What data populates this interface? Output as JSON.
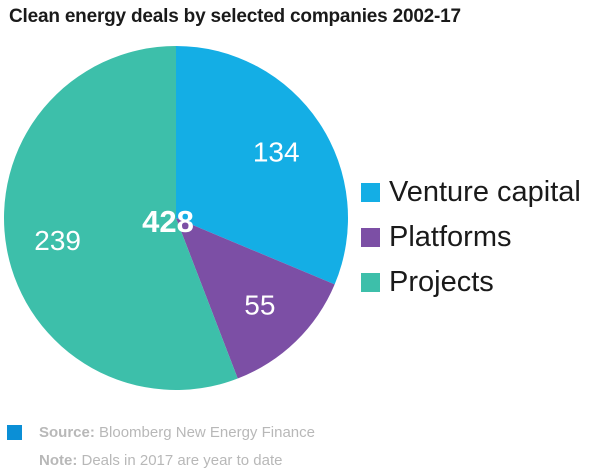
{
  "title": "Clean energy deals by selected companies 2002-17",
  "chart_data": {
    "type": "pie",
    "title": "Clean energy deals by selected companies 2002-17",
    "total_label": "428",
    "slices": [
      {
        "label": "Venture capital",
        "value": 134,
        "color": "#14aee5"
      },
      {
        "label": "Platforms",
        "value": 55,
        "color": "#7c4fa5"
      },
      {
        "label": "Projects",
        "value": 239,
        "color": "#3dbfaa"
      }
    ],
    "legend_position": "right"
  },
  "footer": {
    "mark_color": "#0b8fd6",
    "source_key": "Source:",
    "source_text": " Bloomberg New Energy Finance",
    "note_key": "Note:",
    "note_text": " Deals in 2017 are year to date"
  }
}
